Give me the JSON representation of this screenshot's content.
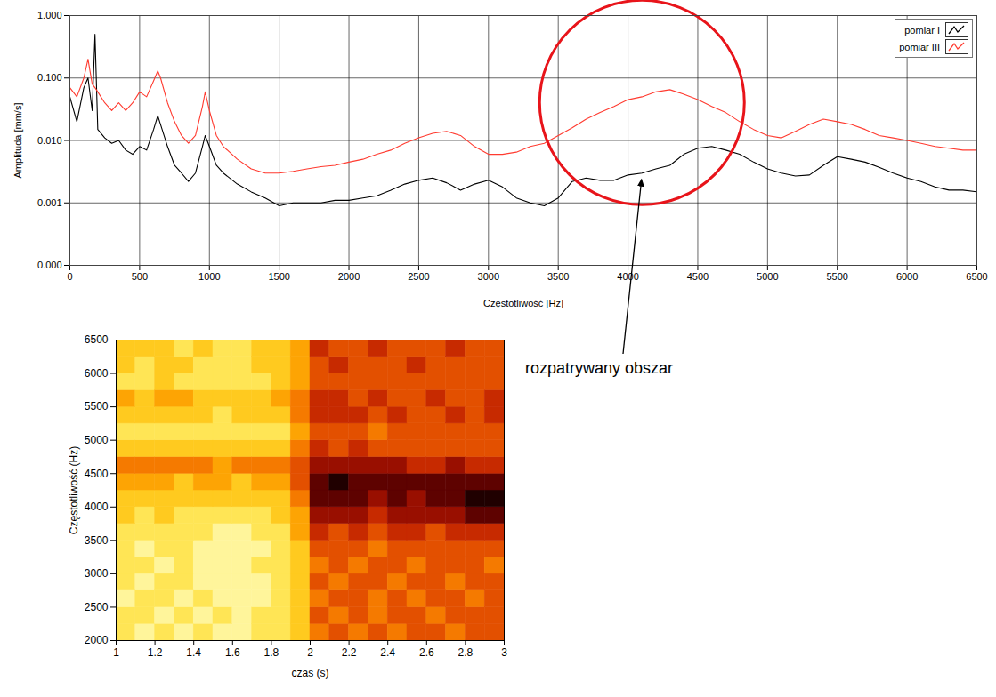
{
  "chart_data": [
    {
      "type": "line",
      "x_label": "Częstotliwość [Hz]",
      "y_label": "Amplituda [mm/s]",
      "log": "y",
      "grid": true,
      "legend": "top-right",
      "xlim": [
        0,
        6500
      ],
      "xticks": [
        0,
        500,
        1000,
        1500,
        2000,
        2500,
        3000,
        3500,
        4000,
        4500,
        5000,
        5500,
        6000,
        6500
      ],
      "ylim": [
        0.0001,
        1
      ],
      "yticks": [
        {
          "value": 0.0001,
          "label": "0.000"
        },
        {
          "value": 0.001,
          "label": "0.001"
        },
        {
          "value": 0.01,
          "label": "0.010"
        },
        {
          "value": 0.1,
          "label": "0.100"
        },
        {
          "value": 1,
          "label": "1.000"
        }
      ],
      "x": [
        0,
        50,
        100,
        130,
        160,
        180,
        200,
        250,
        300,
        350,
        400,
        450,
        500,
        550,
        600,
        630,
        650,
        700,
        750,
        800,
        850,
        900,
        950,
        970,
        1000,
        1050,
        1100,
        1200,
        1300,
        1400,
        1500,
        1600,
        1700,
        1800,
        1900,
        2000,
        2100,
        2200,
        2300,
        2400,
        2500,
        2600,
        2700,
        2800,
        2900,
        3000,
        3100,
        3200,
        3300,
        3400,
        3500,
        3600,
        3700,
        3800,
        3900,
        4000,
        4100,
        4200,
        4300,
        4400,
        4500,
        4600,
        4700,
        4800,
        4900,
        5000,
        5100,
        5200,
        5300,
        5400,
        5500,
        5600,
        5700,
        5800,
        5900,
        6000,
        6100,
        6200,
        6300,
        6400,
        6500
      ],
      "series": [
        {
          "name": "pomiar I",
          "color": "#000000",
          "values": [
            0.05,
            0.02,
            0.07,
            0.1,
            0.03,
            0.5,
            0.015,
            0.011,
            0.009,
            0.01,
            0.007,
            0.006,
            0.008,
            0.007,
            0.015,
            0.025,
            0.018,
            0.008,
            0.004,
            0.003,
            0.0022,
            0.003,
            0.008,
            0.012,
            0.008,
            0.004,
            0.003,
            0.002,
            0.0015,
            0.0012,
            0.0009,
            0.001,
            0.001,
            0.001,
            0.0011,
            0.0011,
            0.0012,
            0.0013,
            0.0016,
            0.002,
            0.0023,
            0.0025,
            0.0021,
            0.0016,
            0.002,
            0.0023,
            0.0018,
            0.0012,
            0.001,
            0.0009,
            0.0012,
            0.0022,
            0.0025,
            0.0023,
            0.0023,
            0.0028,
            0.003,
            0.0035,
            0.004,
            0.006,
            0.0075,
            0.008,
            0.007,
            0.006,
            0.0045,
            0.0035,
            0.003,
            0.0027,
            0.0028,
            0.004,
            0.0055,
            0.005,
            0.0045,
            0.0037,
            0.003,
            0.0025,
            0.0022,
            0.0018,
            0.0016,
            0.0016,
            0.0015
          ]
        },
        {
          "name": "pomiar III",
          "color": "#ff3b30",
          "values": [
            0.07,
            0.05,
            0.1,
            0.2,
            0.08,
            0.07,
            0.06,
            0.04,
            0.03,
            0.04,
            0.03,
            0.04,
            0.06,
            0.05,
            0.09,
            0.13,
            0.1,
            0.04,
            0.02,
            0.012,
            0.009,
            0.012,
            0.035,
            0.06,
            0.03,
            0.012,
            0.008,
            0.005,
            0.0035,
            0.003,
            0.003,
            0.0032,
            0.0035,
            0.0038,
            0.004,
            0.0045,
            0.005,
            0.006,
            0.007,
            0.009,
            0.011,
            0.013,
            0.014,
            0.012,
            0.008,
            0.006,
            0.006,
            0.0065,
            0.008,
            0.009,
            0.012,
            0.016,
            0.022,
            0.028,
            0.035,
            0.045,
            0.05,
            0.06,
            0.065,
            0.055,
            0.045,
            0.035,
            0.028,
            0.02,
            0.015,
            0.012,
            0.011,
            0.014,
            0.018,
            0.022,
            0.02,
            0.018,
            0.015,
            0.012,
            0.011,
            0.01,
            0.009,
            0.008,
            0.0075,
            0.007,
            0.007
          ]
        }
      ],
      "annotations": [
        {
          "text": "rozpatrywany obszar",
          "x": 4100,
          "y": 0.0025
        }
      ]
    },
    {
      "type": "heatmap",
      "x_label": "czas (s)",
      "y_label": "Częstotliwość (Hz)",
      "xlim": [
        1,
        3
      ],
      "xticks": [
        1,
        1.2,
        1.4,
        1.6,
        1.8,
        2,
        2.2,
        2.4,
        2.6,
        2.8,
        3
      ],
      "ylim": [
        2000,
        6500
      ],
      "yticks": [
        2000,
        2500,
        3000,
        3500,
        4000,
        4500,
        5000,
        5500,
        6000,
        6500
      ],
      "zlim": [
        0,
        10
      ],
      "x": [
        1,
        1.1,
        1.2,
        1.3,
        1.4,
        1.5,
        1.6,
        1.7,
        1.8,
        1.9,
        2,
        2.1,
        2.2,
        2.3,
        2.4,
        2.5,
        2.6,
        2.7,
        2.8,
        2.9,
        3
      ],
      "y": [
        2000,
        2250,
        2500,
        2750,
        3000,
        3250,
        3500,
        3750,
        4000,
        4250,
        4500,
        4750,
        5000,
        5250,
        5500,
        5750,
        6000,
        6250,
        6500
      ],
      "values": [
        [
          2,
          1,
          2,
          1,
          2,
          1,
          1,
          2,
          2,
          3,
          5,
          6,
          5,
          6,
          5,
          6,
          6,
          5,
          6,
          6
        ],
        [
          2,
          2,
          1,
          2,
          1,
          2,
          1,
          2,
          2,
          3,
          6,
          5,
          6,
          5,
          6,
          6,
          5,
          6,
          6,
          6
        ],
        [
          1,
          2,
          2,
          1,
          2,
          1,
          1,
          1,
          2,
          3,
          5,
          6,
          6,
          5,
          6,
          5,
          6,
          6,
          5,
          6
        ],
        [
          2,
          1,
          2,
          2,
          1,
          1,
          1,
          1,
          2,
          3,
          6,
          5,
          6,
          6,
          5,
          6,
          6,
          5,
          6,
          6
        ],
        [
          2,
          2,
          1,
          2,
          1,
          1,
          1,
          2,
          2,
          3,
          5,
          6,
          5,
          6,
          6,
          5,
          6,
          6,
          6,
          5
        ],
        [
          2,
          1,
          2,
          2,
          1,
          1,
          1,
          1,
          2,
          3,
          6,
          6,
          6,
          5,
          6,
          6,
          6,
          6,
          6,
          6
        ],
        [
          2,
          2,
          2,
          2,
          2,
          1,
          1,
          2,
          2,
          4,
          7,
          6,
          7,
          6,
          7,
          7,
          6,
          7,
          7,
          7
        ],
        [
          3,
          2,
          3,
          2,
          2,
          2,
          2,
          2,
          3,
          4,
          8,
          8,
          8,
          7,
          8,
          8,
          8,
          8,
          9,
          9
        ],
        [
          3,
          3,
          3,
          3,
          3,
          3,
          3,
          3,
          3,
          5,
          9,
          9,
          9,
          8,
          9,
          8,
          9,
          9,
          10,
          10
        ],
        [
          4,
          4,
          4,
          3,
          4,
          4,
          3,
          4,
          4,
          6,
          9,
          10,
          9,
          9,
          9,
          9,
          9,
          9,
          9,
          9
        ],
        [
          5,
          5,
          5,
          5,
          5,
          4,
          5,
          5,
          5,
          6,
          8,
          8,
          8,
          8,
          8,
          7,
          7,
          8,
          7,
          7
        ],
        [
          3,
          3,
          3,
          3,
          3,
          3,
          3,
          3,
          3,
          5,
          7,
          6,
          7,
          6,
          6,
          6,
          6,
          6,
          6,
          6
        ],
        [
          2,
          2,
          2,
          2,
          2,
          2,
          2,
          2,
          2,
          4,
          6,
          6,
          6,
          5,
          6,
          6,
          6,
          6,
          6,
          6
        ],
        [
          3,
          3,
          3,
          3,
          3,
          2,
          3,
          3,
          3,
          5,
          7,
          7,
          7,
          6,
          7,
          6,
          6,
          7,
          6,
          7
        ],
        [
          4,
          3,
          4,
          4,
          3,
          3,
          3,
          3,
          4,
          5,
          7,
          7,
          6,
          7,
          6,
          6,
          7,
          6,
          6,
          7
        ],
        [
          2,
          2,
          3,
          2,
          2,
          2,
          2,
          2,
          3,
          4,
          6,
          6,
          6,
          6,
          6,
          6,
          6,
          6,
          6,
          6
        ],
        [
          3,
          2,
          3,
          3,
          2,
          2,
          2,
          3,
          3,
          4,
          6,
          7,
          6,
          6,
          6,
          7,
          6,
          6,
          6,
          6
        ],
        [
          3,
          3,
          3,
          2,
          3,
          2,
          2,
          3,
          3,
          4,
          7,
          6,
          6,
          7,
          6,
          6,
          6,
          7,
          6,
          6
        ]
      ]
    }
  ]
}
